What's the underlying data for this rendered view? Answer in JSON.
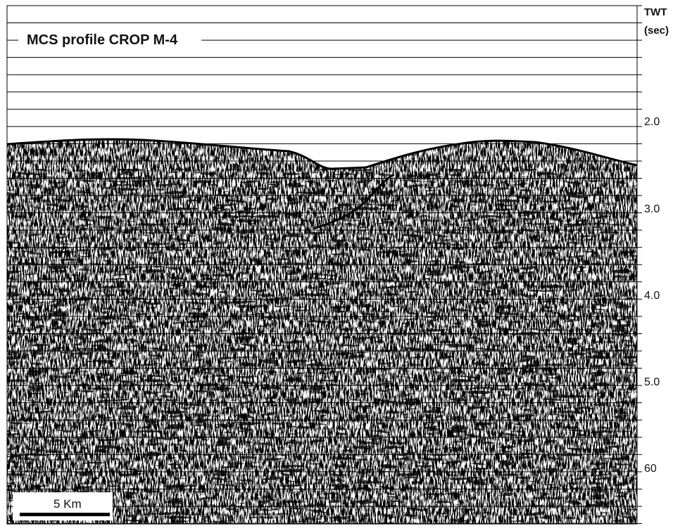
{
  "figure": {
    "title": "MCS profile CROP M-4",
    "axis_title": [
      "TWT",
      "(sec)"
    ],
    "time_labels": [
      "2.0",
      "3.0",
      "4.0",
      "5.0",
      "60"
    ],
    "scale_bar": "5 Km"
  }
}
